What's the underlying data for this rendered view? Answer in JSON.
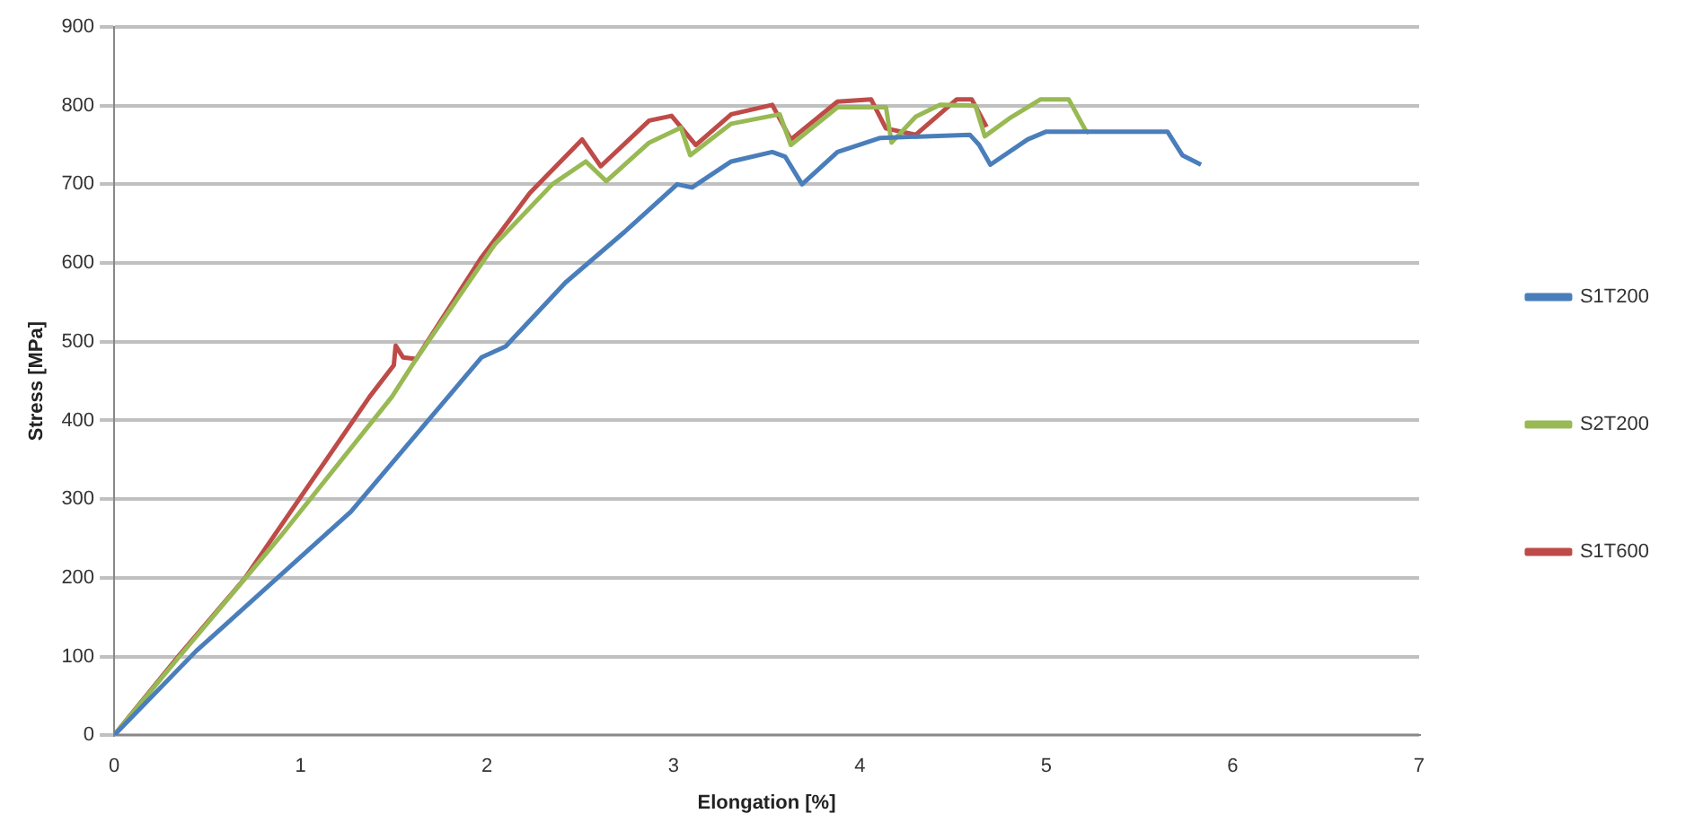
{
  "chart_data": {
    "type": "line",
    "xlabel": "Elongation [%]",
    "ylabel": "Stress [MPa]",
    "xlim": [
      0,
      7
    ],
    "xticks": [
      0,
      1,
      2,
      3,
      4,
      5,
      6,
      7
    ],
    "ylim": [
      0,
      900
    ],
    "yticks": [
      0,
      100,
      200,
      300,
      400,
      500,
      600,
      700,
      800,
      900
    ],
    "grid": "y",
    "legend": "right",
    "marker": "none",
    "line_style": "solid",
    "series": [
      {
        "name": "S1T200",
        "color": "#4a7ebb",
        "x": [
          0,
          0.44,
          1.27,
          1.97,
          2.1,
          2.42,
          2.74,
          3.02,
          3.1,
          3.31,
          3.53,
          3.6,
          3.69,
          3.88,
          4.11,
          4.59,
          4.64,
          4.7,
          4.9,
          5.0,
          5.65,
          5.73,
          5.83
        ],
        "values": [
          0,
          107,
          284,
          480,
          494,
          575,
          640,
          700,
          696,
          729,
          741,
          735,
          700,
          741,
          759,
          763,
          750,
          725,
          757,
          767,
          767,
          737,
          725
        ]
      },
      {
        "name": "S2T200",
        "color": "#98b954",
        "x": [
          0,
          0.35,
          0.89,
          1.49,
          1.62,
          2.04,
          2.35,
          2.53,
          2.64,
          2.87,
          3.04,
          3.09,
          3.31,
          3.57,
          3.63,
          3.88,
          4.14,
          4.17,
          4.3,
          4.43,
          4.62,
          4.67,
          4.81,
          4.97,
          5.12,
          5.21,
          5.23
        ],
        "values": [
          0,
          100,
          252,
          430,
          478,
          623,
          700,
          729,
          704,
          753,
          772,
          737,
          777,
          789,
          750,
          798,
          798,
          753,
          786,
          801,
          800,
          761,
          785,
          808,
          808,
          769,
          765
        ]
      },
      {
        "name": "S1T600",
        "color": "#be4b48",
        "x": [
          0,
          0.35,
          0.7,
          1.37,
          1.5,
          1.51,
          1.55,
          1.62,
          1.97,
          2.23,
          2.51,
          2.61,
          2.87,
          2.99,
          3.12,
          3.31,
          3.53,
          3.63,
          3.88,
          4.06,
          4.14,
          4.3,
          4.52,
          4.6,
          4.68
        ],
        "values": [
          0,
          102,
          199,
          430,
          470,
          495,
          480,
          478,
          607,
          689,
          757,
          723,
          781,
          787,
          750,
          789,
          801,
          757,
          805,
          808,
          771,
          763,
          808,
          808,
          773
        ]
      }
    ]
  }
}
